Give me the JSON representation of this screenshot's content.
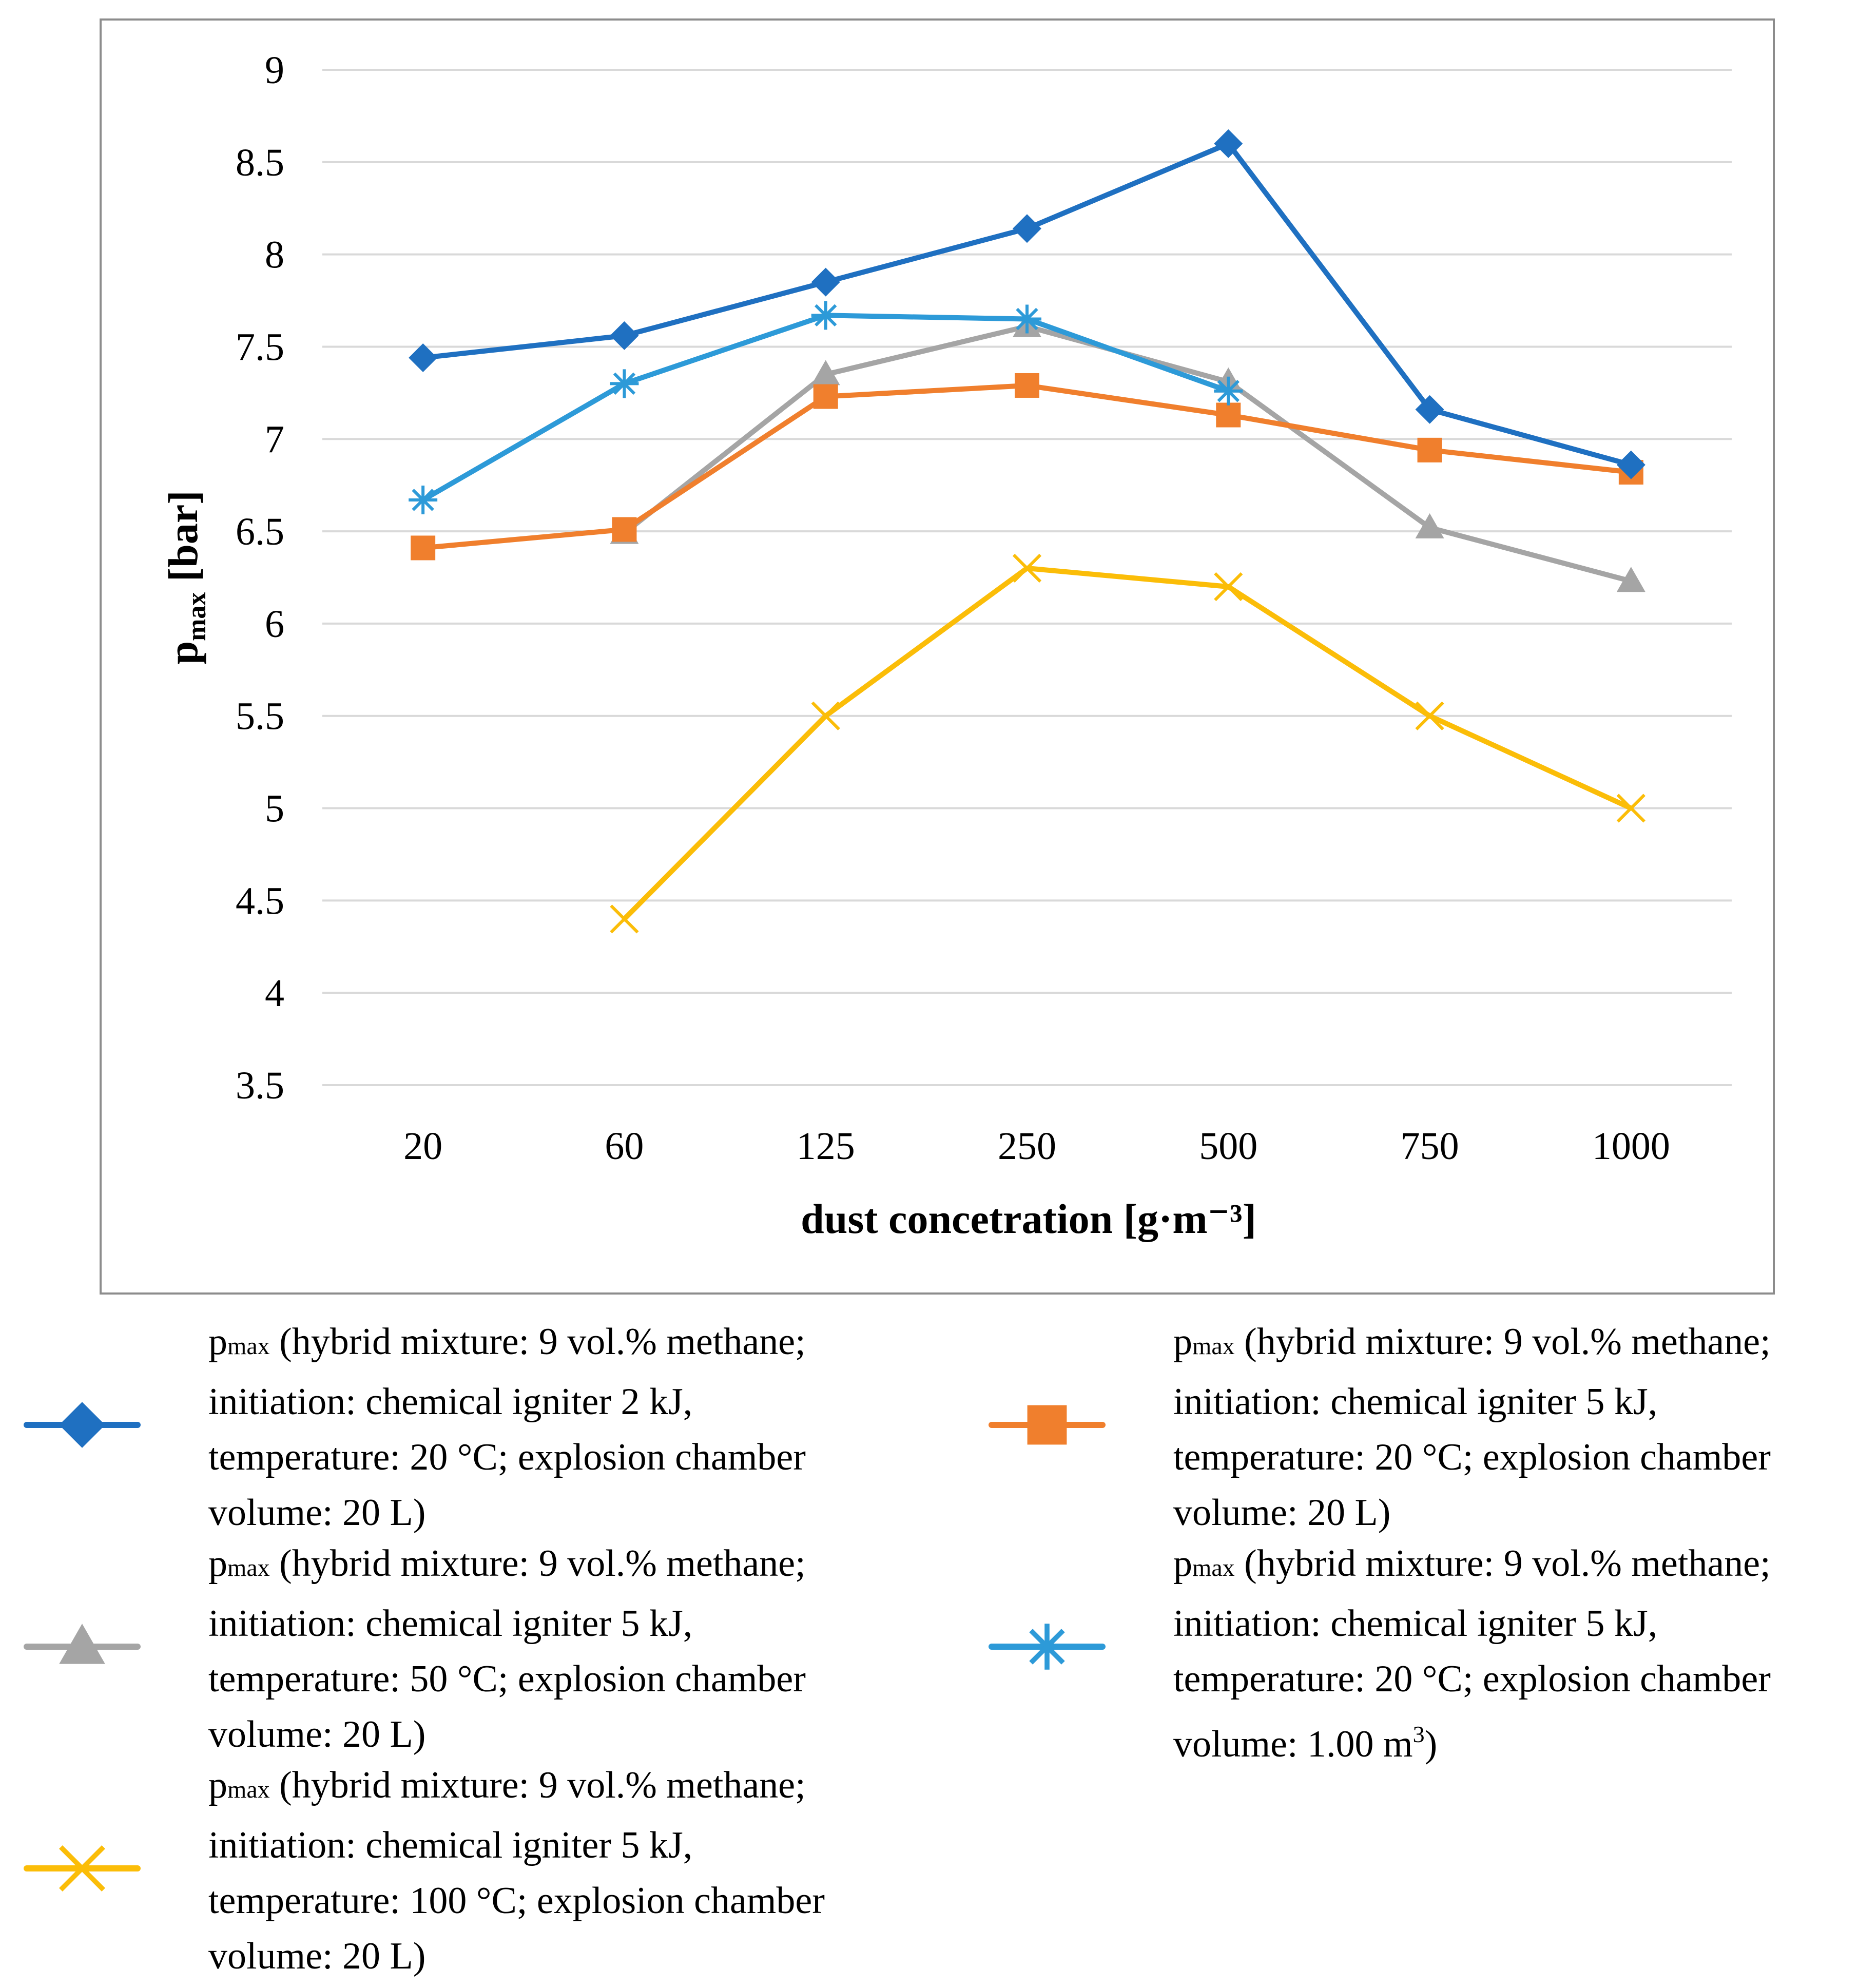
{
  "chart_data": {
    "type": "line",
    "title": "",
    "xlabel": "dust concetration [g·m⁻³]",
    "ylabel_main": "p",
    "ylabel_sub": "max",
    "ylabel_tail": " [bar]",
    "ylim": [
      3.5,
      9
    ],
    "yticks": [
      "3.5",
      "4",
      "4.5",
      "5",
      "5.5",
      "6",
      "6.5",
      "7",
      "7.5",
      "8",
      "8.5",
      "9"
    ],
    "categories": [
      "20",
      "60",
      "125",
      "250",
      "500",
      "750",
      "1000"
    ],
    "grid": true,
    "legend_position": "bottom",
    "series": [
      {
        "name": "pmax (hybrid mixture: 9 vol.% methane; initiation: chemical igniter 2 kJ, temperature: 20 °C; explosion chamber volume: 20 L)",
        "color": "#1f70c1",
        "marker": "diamond",
        "values": [
          7.44,
          7.56,
          7.85,
          8.14,
          8.6,
          7.16,
          6.86
        ]
      },
      {
        "name": "pmax (hybrid mixture: 9 vol.% methane; initiation: chemical igniter 5 kJ, temperature: 20 °C; explosion chamber volume: 20 L)",
        "color": "#f07f2d",
        "marker": "square",
        "values": [
          6.41,
          6.51,
          7.23,
          7.29,
          7.13,
          6.94,
          6.82
        ]
      },
      {
        "name": "pmax (hybrid mixture: 9 vol.% methane; initiation: chemical igniter 5 kJ, temperature: 50 °C; explosion chamber volume: 20 L)",
        "color": "#a5a5a5",
        "marker": "triangle",
        "values": [
          null,
          6.49,
          7.35,
          7.61,
          7.31,
          6.52,
          6.23
        ]
      },
      {
        "name": "pmax (hybrid mixture: 9 vol.% methane; initiation: chemical igniter 5 kJ, temperature: 20 °C; explosion chamber volume: 1.00 m³)",
        "color": "#2d9ad8",
        "marker": "asterisk",
        "values": [
          6.67,
          7.3,
          7.67,
          7.65,
          7.26,
          null,
          null
        ]
      },
      {
        "name": "pmax (hybrid mixture: 9 vol.% methane; initiation: chemical igniter 5 kJ, temperature: 100 °C; explosion chamber volume: 20 L)",
        "color": "#fbbd08",
        "marker": "x",
        "values": [
          null,
          4.4,
          5.5,
          6.3,
          6.2,
          5.5,
          5.0
        ]
      }
    ]
  },
  "legend": {
    "items": [
      {
        "prefix": "max",
        "lines": [
          "p",
          "(hybrid mixture: 9 vol.% methane;",
          "initiation: chemical igniter 2 kJ,",
          "temperature: 20 °C; explosion chamber",
          "volume: 20 L)"
        ]
      },
      {
        "prefix": "max",
        "lines": [
          "p",
          "(hybrid mixture: 9 vol.% methane;",
          "initiation: chemical igniter 5 kJ,",
          "temperature: 20 °C; explosion chamber",
          "volume: 20 L)"
        ]
      },
      {
        "prefix": "max",
        "lines": [
          "p",
          "(hybrid mixture: 9 vol.% methane;",
          "initiation: chemical igniter 5 kJ,",
          "temperature: 50 °C; explosion chamber",
          "volume: 20 L)"
        ]
      },
      {
        "prefix": "max",
        "lines": [
          "p",
          "(hybrid mixture: 9 vol.% methane;",
          "initiation: chemical igniter 5 kJ,",
          "temperature: 20 °C; explosion chamber",
          "volume: 1.00 m"
        ],
        "sup": "3",
        "tail": ")"
      },
      {
        "prefix": "max",
        "lines": [
          "p",
          "(hybrid mixture: 9 vol.% methane;",
          "initiation: chemical igniter 5 kJ,",
          "temperature: 100 °C; explosion chamber",
          "volume: 20 L)"
        ]
      }
    ]
  }
}
